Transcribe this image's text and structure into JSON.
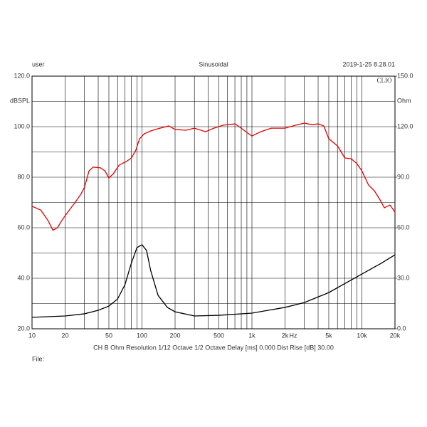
{
  "chart_data": {
    "type": "line",
    "header_left": "user",
    "title": "Sinusoidal",
    "timestamp": "2019-1-25 8.28.01",
    "brand": "CLIO",
    "ylabel": "dBSPL",
    "y2label": "Ohm",
    "xlabel": "Hz",
    "footer": "CH B   Ohm   Resolution 1/12 Octave   1/2 Octave   Delay [ms] 0.000   Dist Rise [dB] 30.00",
    "file_label": "File:",
    "xscale": "log",
    "grid": true,
    "xlim": [
      10,
      20000
    ],
    "xticks": [
      {
        "value": 10,
        "label": "10"
      },
      {
        "value": 20,
        "label": "20"
      },
      {
        "value": 50,
        "label": "50"
      },
      {
        "value": 100,
        "label": "100"
      },
      {
        "value": 200,
        "label": "200"
      },
      {
        "value": 500,
        "label": "500"
      },
      {
        "value": 1000,
        "label": "1k"
      },
      {
        "value": 2000,
        "label": "2k"
      },
      {
        "value": 5000,
        "label": "5k"
      },
      {
        "value": 10000,
        "label": "10k"
      },
      {
        "value": 20000,
        "label": "20k"
      }
    ],
    "xminor": [
      30,
      40,
      60,
      70,
      80,
      90,
      300,
      400,
      600,
      700,
      800,
      900,
      3000,
      4000,
      6000,
      7000,
      8000,
      9000
    ],
    "ylim": [
      20,
      120
    ],
    "yticks": [
      {
        "value": 20,
        "label": "20.0"
      },
      {
        "value": 40,
        "label": "40.0"
      },
      {
        "value": 60,
        "label": "60.0"
      },
      {
        "value": 80,
        "label": "80.0"
      },
      {
        "value": 100,
        "label": "100.0"
      },
      {
        "value": 120,
        "label": "120.0"
      }
    ],
    "yminor": [
      30,
      50,
      70,
      90,
      110
    ],
    "y2lim": [
      0,
      150
    ],
    "y2ticks": [
      {
        "value": 0,
        "label": "0.0"
      },
      {
        "value": 30,
        "label": "30.0"
      },
      {
        "value": 60,
        "label": "60.0"
      },
      {
        "value": 90,
        "label": "90.0"
      },
      {
        "value": 120,
        "label": "120.0"
      },
      {
        "value": 150,
        "label": "150.0"
      }
    ],
    "series": [
      {
        "color": "#e00000",
        "x": [
          10,
          12,
          14,
          15.5,
          17,
          19,
          21,
          25,
          28,
          30,
          33,
          36,
          42,
          46,
          50,
          55,
          62,
          72,
          80,
          88,
          95,
          105,
          120,
          140,
          175,
          200,
          250,
          300,
          380,
          450,
          550,
          700,
          800,
          900,
          1000,
          1200,
          1500,
          2000,
          2500,
          3000,
          3500,
          4000,
          4500,
          5000,
          6000,
          7000,
          8000,
          9000,
          10000,
          11500,
          13000,
          14500,
          16000,
          18000,
          20000
        ],
        "values": [
          68.5,
          67,
          62.8,
          59,
          60,
          63.4,
          66,
          70.4,
          73.5,
          76,
          82.5,
          84,
          83.7,
          82.5,
          79.7,
          81.4,
          84.8,
          86.2,
          87.6,
          90.7,
          95.2,
          97.2,
          98.3,
          99.2,
          100.3,
          98.9,
          98.6,
          99.4,
          98,
          99.4,
          100.6,
          101.1,
          99.4,
          97.7,
          96.3,
          98,
          99.4,
          99.4,
          100.6,
          101.4,
          100.8,
          101.1,
          100.3,
          95.2,
          92.4,
          87.6,
          87.3,
          85.4,
          82.5,
          76.9,
          74.6,
          71.3,
          67.9,
          69,
          66.2
        ]
      },
      {
        "color": "#000000",
        "axis": "y2",
        "x": [
          10,
          20,
          30,
          40,
          50,
          60,
          70,
          80,
          90,
          100,
          110,
          120,
          140,
          170,
          200,
          300,
          500,
          1000,
          2000,
          3000,
          5000,
          10000,
          15000,
          20000
        ],
        "values": [
          6.8,
          7.6,
          8.9,
          11,
          13.5,
          17.7,
          26.2,
          38.9,
          48.2,
          49.9,
          46.5,
          34.6,
          19.9,
          12.7,
          10.1,
          7.6,
          8,
          9.3,
          12.7,
          15.6,
          21.5,
          32.5,
          38.9,
          43.9
        ]
      }
    ]
  }
}
